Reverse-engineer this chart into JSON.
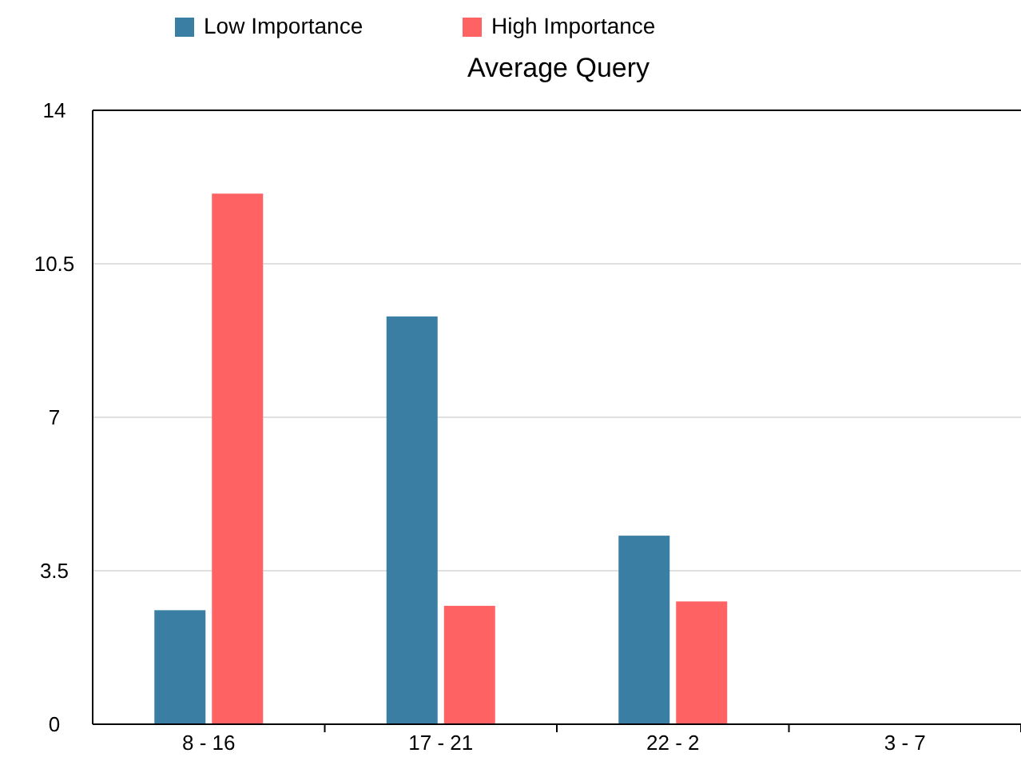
{
  "chart_data": {
    "type": "bar",
    "title": "Average Query",
    "categories": [
      "8 - 16",
      "17 - 21",
      "22 - 2",
      "3 - 7"
    ],
    "series": [
      {
        "name": "Low Importance",
        "color": "#3a7fa3",
        "values": [
          2.6,
          9.3,
          4.3,
          null
        ]
      },
      {
        "name": "High Importance",
        "color": "#fe6262",
        "values": [
          12.1,
          2.7,
          2.8,
          null
        ]
      }
    ],
    "ylim": [
      0,
      14
    ],
    "yticks": [
      0,
      3.5,
      7,
      10.5,
      14
    ],
    "grid": "y",
    "legend": "top"
  }
}
